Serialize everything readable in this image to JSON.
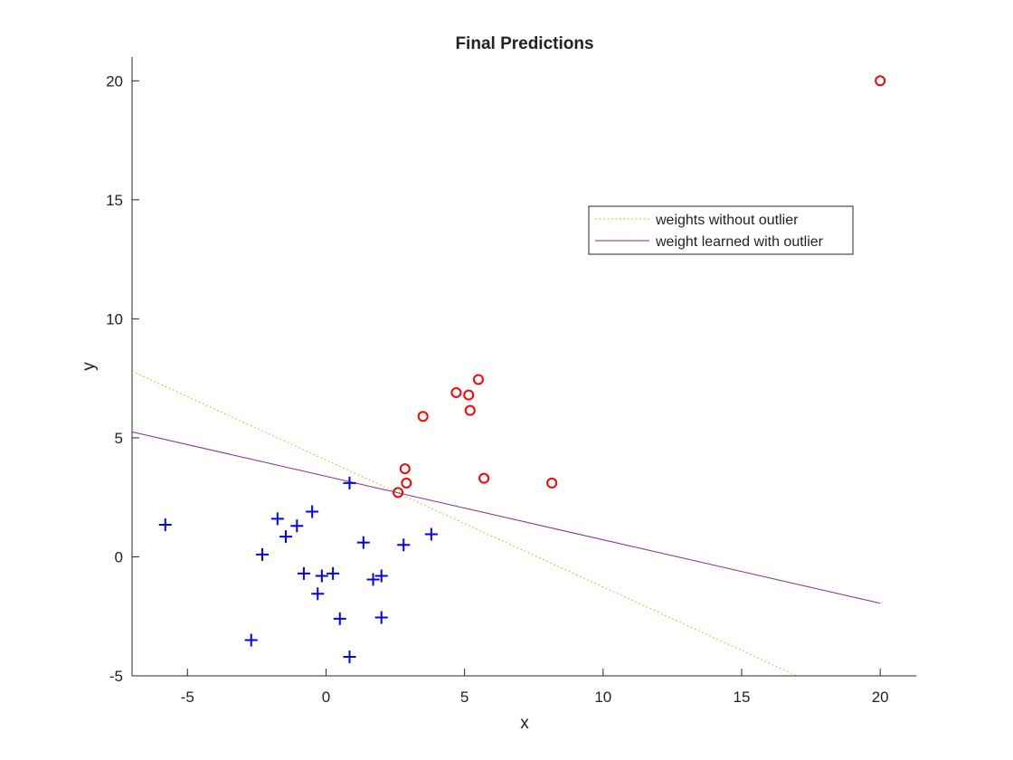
{
  "chart_data": {
    "type": "scatter",
    "title": "Final Predictions",
    "xlabel": "x",
    "ylabel": "y",
    "xlim": [
      -7,
      21.3
    ],
    "ylim": [
      -5,
      21
    ],
    "xticks": [
      -5,
      0,
      5,
      10,
      15,
      20
    ],
    "yticks": [
      -5,
      0,
      5,
      10,
      15,
      20
    ],
    "grid": false,
    "legend": {
      "location": "right",
      "entries": [
        {
          "name": "weights without outlier",
          "style": "dotted",
          "color": "#f0a000"
        },
        {
          "name": "weight learned with outlier",
          "style": "solid",
          "color": "#7e2f8e"
        }
      ]
    },
    "series": [
      {
        "marker": "plus",
        "color": "#0000ff",
        "points": [
          [
            -5.8,
            1.35
          ],
          [
            -2.7,
            -3.5
          ],
          [
            -2.3,
            0.1
          ],
          [
            -1.75,
            1.6
          ],
          [
            -1.45,
            0.85
          ],
          [
            -1.05,
            1.3
          ],
          [
            -0.8,
            -0.7
          ],
          [
            -0.5,
            1.9
          ],
          [
            -0.3,
            -1.55
          ],
          [
            -0.15,
            -0.8
          ],
          [
            0.25,
            -0.7
          ],
          [
            0.5,
            -2.6
          ],
          [
            0.85,
            3.1
          ],
          [
            0.85,
            -4.2
          ],
          [
            1.35,
            0.6
          ],
          [
            1.7,
            -0.95
          ],
          [
            2.0,
            -0.8
          ],
          [
            2.0,
            -2.55
          ],
          [
            2.8,
            0.5
          ],
          [
            3.8,
            0.95
          ]
        ]
      },
      {
        "marker": "circle",
        "color": "#ff0000",
        "points": [
          [
            2.6,
            2.7
          ],
          [
            2.85,
            3.7
          ],
          [
            2.9,
            3.1
          ],
          [
            3.5,
            5.9
          ],
          [
            4.7,
            6.9
          ],
          [
            5.15,
            6.8
          ],
          [
            5.2,
            6.15
          ],
          [
            5.5,
            7.45
          ],
          [
            5.7,
            3.3
          ],
          [
            8.15,
            3.1
          ],
          [
            20,
            20
          ]
        ]
      },
      {
        "name": "weights without outlier",
        "type": "line",
        "style": "dotted",
        "color": "#f0a000",
        "points": [
          [
            -7,
            7.8
          ],
          [
            17,
            -5
          ]
        ]
      },
      {
        "name": "weight learned with outlier",
        "type": "line",
        "style": "solid",
        "color": "#7e2f8e",
        "points": [
          [
            -7,
            5.25
          ],
          [
            20,
            -1.95
          ]
        ]
      }
    ]
  }
}
